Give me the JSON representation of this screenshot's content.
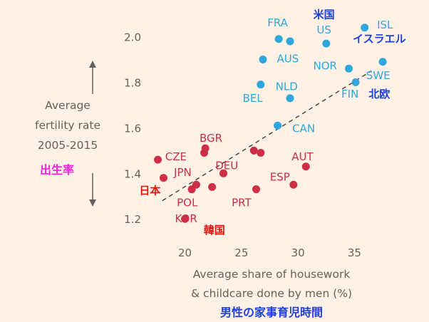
{
  "chart_data": {
    "type": "scatter",
    "xlim": [
      17,
      38
    ],
    "ylim": [
      1.16,
      2.08
    ],
    "x_ticks": [
      20,
      25,
      30,
      35
    ],
    "y_ticks": [
      1.2,
      1.4,
      1.6,
      1.8,
      2.0
    ],
    "ylabel": [
      "Average",
      "fertility rate",
      "2005-2015"
    ],
    "ylabel_ja": "出生率",
    "xlabel": [
      "Average share of housework",
      "& childcare done by men (%)"
    ],
    "xlabel_ja": "男性の家事育児時間",
    "trend_line": {
      "x": [
        18,
        36.5
      ],
      "y": [
        1.28,
        1.85
      ]
    },
    "grid": false,
    "colors": {
      "blue": "#2fa6dc",
      "red": "#cc2f46",
      "ja_blue": "#1c3fe0",
      "ja_red": "#e8150c",
      "ja_pink": "#ff22e0"
    },
    "points": [
      {
        "x": 28.3,
        "y": 1.99,
        "c": "blue"
      },
      {
        "x": 29.3,
        "y": 1.98,
        "c": "blue"
      },
      {
        "x": 32.5,
        "y": 1.97,
        "c": "blue"
      },
      {
        "x": 35.9,
        "y": 2.04,
        "c": "blue"
      },
      {
        "x": 26.9,
        "y": 1.9,
        "c": "blue"
      },
      {
        "x": 34.5,
        "y": 1.86,
        "c": "blue"
      },
      {
        "x": 37.5,
        "y": 1.89,
        "c": "blue"
      },
      {
        "x": 26.7,
        "y": 1.79,
        "c": "blue"
      },
      {
        "x": 35.1,
        "y": 1.8,
        "c": "blue"
      },
      {
        "x": 29.3,
        "y": 1.73,
        "c": "blue"
      },
      {
        "x": 28.2,
        "y": 1.61,
        "c": "blue"
      },
      {
        "x": 21.8,
        "y": 1.51,
        "c": "red"
      },
      {
        "x": 21.7,
        "y": 1.49,
        "c": "red"
      },
      {
        "x": 17.6,
        "y": 1.46,
        "c": "red"
      },
      {
        "x": 26.1,
        "y": 1.5,
        "c": "red"
      },
      {
        "x": 26.7,
        "y": 1.49,
        "c": "red"
      },
      {
        "x": 30.7,
        "y": 1.43,
        "c": "red"
      },
      {
        "x": 18.1,
        "y": 1.38,
        "c": "red"
      },
      {
        "x": 23.4,
        "y": 1.4,
        "c": "red"
      },
      {
        "x": 21.0,
        "y": 1.35,
        "c": "red"
      },
      {
        "x": 20.6,
        "y": 1.33,
        "c": "red"
      },
      {
        "x": 22.4,
        "y": 1.34,
        "c": "red"
      },
      {
        "x": 26.3,
        "y": 1.33,
        "c": "red"
      },
      {
        "x": 29.6,
        "y": 1.35,
        "c": "red"
      },
      {
        "x": 20.0,
        "y": 1.2,
        "c": "red"
      }
    ],
    "labels": [
      {
        "text": "FRA",
        "x": 28.2,
        "y": 2.045,
        "c": "blue",
        "anchor": "middle"
      },
      {
        "text": "米国",
        "x": 32.3,
        "y": 2.082,
        "c": "ja_blue",
        "anchor": "middle",
        "ja": true
      },
      {
        "text": "US",
        "x": 32.3,
        "y": 2.015,
        "c": "blue",
        "anchor": "middle"
      },
      {
        "text": "ISL",
        "x": 37.7,
        "y": 2.036,
        "c": "blue",
        "anchor": "middle"
      },
      {
        "text": "イスラエル",
        "x": 37.2,
        "y": 1.975,
        "c": "ja_blue",
        "anchor": "middle",
        "ja": true
      },
      {
        "text": "AUS",
        "x": 29.1,
        "y": 1.887,
        "c": "blue",
        "anchor": "middle"
      },
      {
        "text": "NOR",
        "x": 32.4,
        "y": 1.856,
        "c": "blue",
        "anchor": "middle"
      },
      {
        "text": "SWE",
        "x": 37.1,
        "y": 1.814,
        "c": "blue",
        "anchor": "middle"
      },
      {
        "text": "NLD",
        "x": 29.0,
        "y": 1.765,
        "c": "blue",
        "anchor": "middle"
      },
      {
        "text": "FIN",
        "x": 34.6,
        "y": 1.733,
        "c": "blue",
        "anchor": "middle"
      },
      {
        "text": "北欧",
        "x": 37.2,
        "y": 1.733,
        "c": "ja_blue",
        "anchor": "middle",
        "ja": true
      },
      {
        "text": "BEL",
        "x": 26.0,
        "y": 1.714,
        "c": "blue",
        "anchor": "middle"
      },
      {
        "text": "CAN",
        "x": 30.5,
        "y": 1.581,
        "c": "blue",
        "anchor": "middle"
      },
      {
        "text": "BGR",
        "x": 22.3,
        "y": 1.538,
        "c": "red",
        "anchor": "middle"
      },
      {
        "text": "CZE",
        "x": 19.2,
        "y": 1.458,
        "c": "red",
        "anchor": "middle"
      },
      {
        "text": "AUT",
        "x": 30.4,
        "y": 1.458,
        "c": "red",
        "anchor": "middle"
      },
      {
        "text": "DEU",
        "x": 23.7,
        "y": 1.418,
        "c": "red",
        "anchor": "middle"
      },
      {
        "text": "JPN",
        "x": 19.8,
        "y": 1.388,
        "c": "red",
        "anchor": "middle"
      },
      {
        "text": "ESP",
        "x": 28.4,
        "y": 1.368,
        "c": "red",
        "anchor": "middle"
      },
      {
        "text": "日本",
        "x": 16.9,
        "y": 1.308,
        "c": "ja_red",
        "anchor": "middle",
        "ja": true
      },
      {
        "text": "POL",
        "x": 20.2,
        "y": 1.255,
        "c": "red",
        "anchor": "middle"
      },
      {
        "text": "PRT",
        "x": 25.0,
        "y": 1.255,
        "c": "red",
        "anchor": "middle"
      },
      {
        "text": "KOR",
        "x": 20.1,
        "y": 1.185,
        "c": "red",
        "anchor": "middle"
      },
      {
        "text": "韓国",
        "x": 22.6,
        "y": 1.135,
        "c": "ja_red",
        "anchor": "middle",
        "ja": true
      }
    ]
  }
}
